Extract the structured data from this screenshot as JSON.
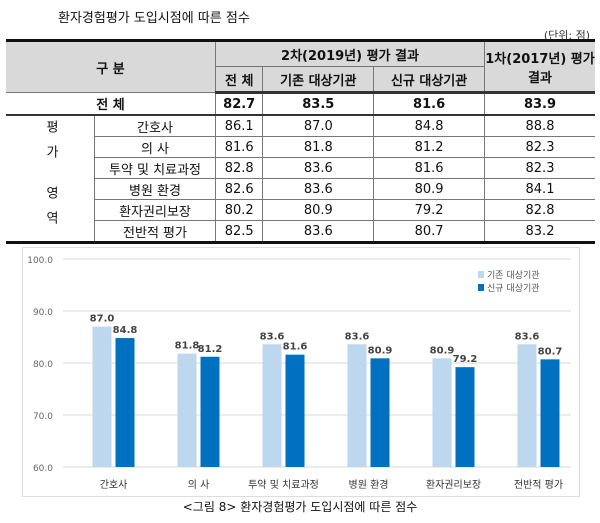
{
  "title": "환자경험평가 도입시점에 따른 점수",
  "unit": "(단위: 점)",
  "table": {
    "h_group": "구 분",
    "h_2019": "2차(2019년) 평가 결과",
    "h_2017": "1차(2017년) 평가 결과",
    "h_all": "전 체",
    "h_exist": "기존 대상기관",
    "h_new": "신규 대상기관",
    "total": {
      "label": "전 체",
      "all": "82.7",
      "exist": "83.5",
      "new": "81.6",
      "y2017": "83.9"
    },
    "area_label": "평가 영역",
    "rows": [
      {
        "label": "간호사",
        "all": "86.1",
        "exist": "87.0",
        "new": "84.8",
        "y2017": "88.8"
      },
      {
        "label": "의 사",
        "all": "81.6",
        "exist": "81.8",
        "new": "81.2",
        "y2017": "82.3"
      },
      {
        "label": "투약 및 치료과정",
        "all": "82.8",
        "exist": "83.6",
        "new": "81.6",
        "y2017": "82.3"
      },
      {
        "label": "병원 환경",
        "all": "82.6",
        "exist": "83.6",
        "new": "80.9",
        "y2017": "84.1"
      },
      {
        "label": "환자권리보장",
        "all": "80.2",
        "exist": "80.9",
        "new": "79.2",
        "y2017": "82.8"
      },
      {
        "label": "전반적 평가",
        "all": "82.5",
        "exist": "83.6",
        "new": "80.7",
        "y2017": "83.2"
      }
    ]
  },
  "chart_data": {
    "type": "bar",
    "categories": [
      "간호사",
      "의 사",
      "투약 및 치료과정",
      "병원 환경",
      "환자권리보장",
      "전반적 평가"
    ],
    "series": [
      {
        "name": "기존 대상기관",
        "values": [
          87.0,
          81.8,
          83.6,
          83.6,
          80.9,
          83.6
        ],
        "color": "#bdd7ee"
      },
      {
        "name": "신규 대상기관",
        "values": [
          84.8,
          81.2,
          81.6,
          80.9,
          79.2,
          80.7
        ],
        "color": "#0070c0"
      }
    ],
    "yticks": [
      "100.0",
      "90.0",
      "80.0",
      "70.0",
      "60.0"
    ],
    "ylim": [
      60,
      100
    ],
    "legend": "top-right"
  },
  "caption": "<그림 8> 환자경험평가 도입시점에 따른 점수"
}
